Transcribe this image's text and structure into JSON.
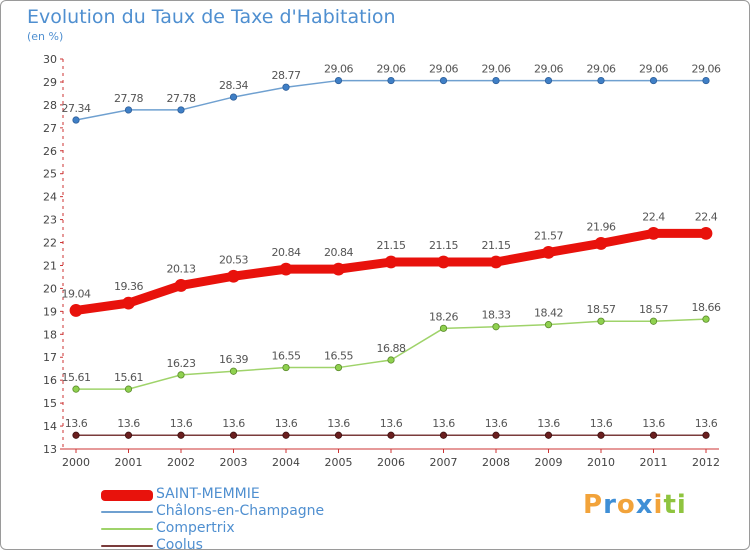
{
  "title": "Evolution du Taux de Taxe d'Habitation",
  "subtitle": "(en %)",
  "logo": {
    "letters": [
      "P",
      "r",
      "o",
      "x",
      "i",
      "t",
      "i"
    ],
    "colors": [
      "#f2a33a",
      "#3f8fd6",
      "#f2a33a",
      "#3f8fd6",
      "#f2a33a",
      "#8fc43f",
      "#8fc43f"
    ]
  },
  "chart_data": {
    "type": "line",
    "categories": [
      "2000",
      "2001",
      "2002",
      "2003",
      "2004",
      "2005",
      "2006",
      "2007",
      "2008",
      "2009",
      "2010",
      "2011",
      "2012"
    ],
    "ylim": [
      13,
      30
    ],
    "yticks": [
      "13",
      "14",
      "15",
      "16",
      "17",
      "18",
      "19",
      "20",
      "21",
      "22",
      "23",
      "24",
      "25",
      "26",
      "27",
      "28",
      "29",
      "30"
    ],
    "xlabel": "",
    "ylabel": "",
    "grid": false,
    "legend_position": "bottom-left",
    "series": [
      {
        "name": "SAINT-MEMMIE",
        "color": "#e8120c",
        "values": [
          19.04,
          19.36,
          20.13,
          20.53,
          20.84,
          20.84,
          21.15,
          21.15,
          21.15,
          21.57,
          21.96,
          22.4,
          22.4
        ],
        "labels": [
          "19.04",
          "19.36",
          "20.13",
          "20.53",
          "20.84",
          "20.84",
          "21.15",
          "21.15",
          "21.15",
          "21.57",
          "21.96",
          "22.4",
          "22.4"
        ]
      },
      {
        "name": "Châlons-en-Champagne",
        "color": "#6fa0d0",
        "values": [
          27.34,
          27.78,
          27.78,
          28.34,
          28.77,
          29.06,
          29.06,
          29.06,
          29.06,
          29.06,
          29.06,
          29.06,
          29.06
        ],
        "labels": [
          "27.34",
          "27.78",
          "27.78",
          "28.34",
          "28.77",
          "29.06",
          "29.06",
          "29.06",
          "29.06",
          "29.06",
          "29.06",
          "29.06",
          "29.06"
        ]
      },
      {
        "name": "Compertrix",
        "color": "#9fd36a",
        "values": [
          15.61,
          15.61,
          16.23,
          16.39,
          16.55,
          16.55,
          16.88,
          18.26,
          18.33,
          18.42,
          18.57,
          18.57,
          18.66
        ],
        "labels": [
          "15.61",
          "15.61",
          "16.23",
          "16.39",
          "16.55",
          "16.55",
          "16.88",
          "18.26",
          "18.33",
          "18.42",
          "18.57",
          "18.57",
          "18.66"
        ]
      },
      {
        "name": "Coolus",
        "color": "#7a3b3b",
        "values": [
          13.6,
          13.6,
          13.6,
          13.6,
          13.6,
          13.6,
          13.6,
          13.6,
          13.6,
          13.6,
          13.6,
          13.6,
          13.6
        ],
        "labels": [
          "13.6",
          "13.6",
          "13.6",
          "13.6",
          "13.6",
          "13.6",
          "13.6",
          "13.6",
          "13.6",
          "13.6",
          "13.6",
          "13.6",
          "13.6"
        ]
      }
    ]
  }
}
